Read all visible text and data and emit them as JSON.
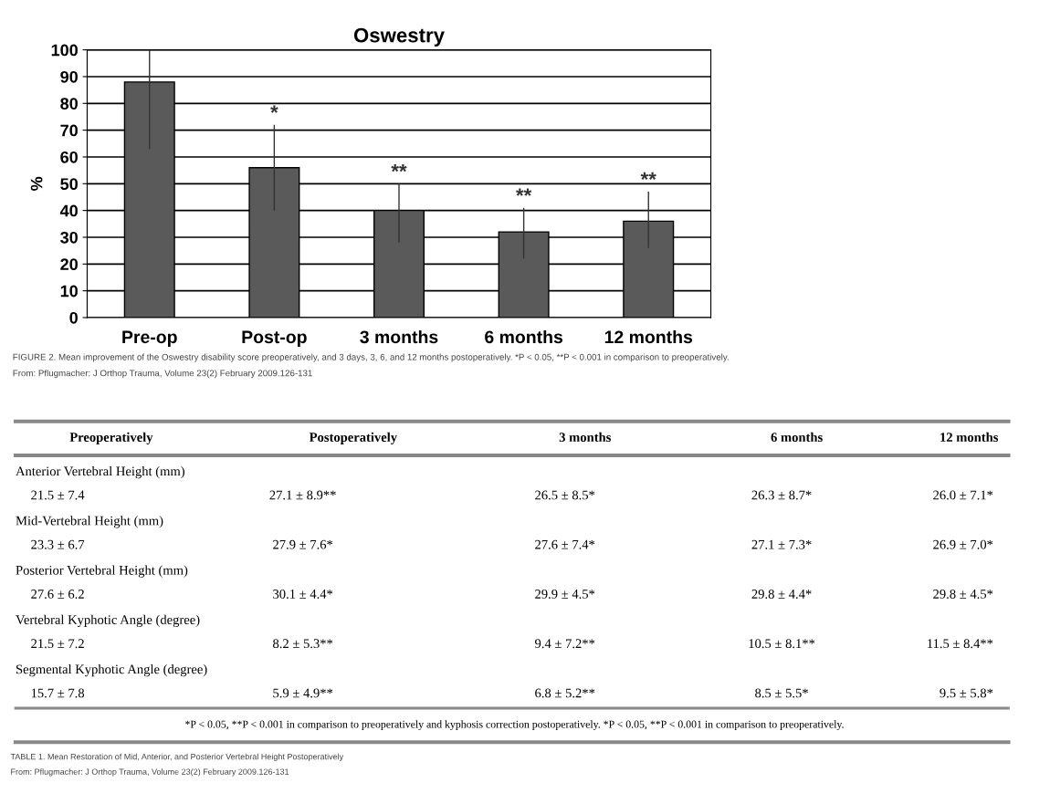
{
  "chart_data": [
    {
      "type": "bar",
      "title": "Oswestry",
      "ylabel": "%",
      "categories": [
        "Pre-op",
        "Post-op",
        "3 months",
        "6 months",
        "12 months"
      ],
      "values": [
        88,
        56,
        40,
        32,
        36
      ],
      "errors": [
        [
          63,
          100
        ],
        [
          40,
          72
        ],
        [
          28,
          50
        ],
        [
          22,
          41
        ],
        [
          26,
          47
        ]
      ],
      "color": "#5a5a5a",
      "ylim": [
        0,
        100
      ],
      "yticks": [
        0,
        10,
        20,
        30,
        40,
        50,
        60,
        70,
        80,
        90,
        100
      ],
      "grid": "y",
      "annotations": [
        {
          "text": "*",
          "x": "Post-op",
          "y": 72
        },
        {
          "text": "**",
          "x": "3 months",
          "y": 50
        },
        {
          "text": "**",
          "x": "6 months",
          "y": 41
        },
        {
          "text": "**",
          "x": "12 months",
          "y": 47
        },
        "FIGURE 2. Mean improvement of the Oswestry disability score preoperatively, and 3 days, 3, 6, and 12 months postoperatively. *P < 0.05, **P < 0.001 in comparison to preoperatively.",
        "From: Pflugmacher: J Orthop Trauma, Volume 23(2) February 2009.126-131"
      ]
    },
    {
      "type": "other",
      "annotations": [
        "Preoperatively",
        "Postoperatively",
        "3 months",
        "6 months",
        "12 months",
        "Anterior Vertebral Height (mm)",
        "21.5 ± 7.4",
        "27.1 ± 8.9**",
        "26.5 ± 8.5*",
        "26.3 ± 8.7*",
        "26.0 ± 7.1*",
        "Mid-Vertebral Height (mm)",
        "23.3 ± 6.7",
        "27.9 ± 7.6*",
        "27.6 ± 7.4*",
        "27.1 ± 7.3*",
        "26.9 ± 7.0*",
        "Posterior Vertebral Height (mm)",
        "27.6 ± 6.2",
        "30.1 ± 4.4*",
        "29.9 ± 4.5*",
        "29.8 ± 4.4*",
        "29.8 ± 4.5*",
        "Vertebral Kyphotic Angle (degree)",
        "21.5 ± 7.2",
        "8.2 ± 5.3**",
        "9.4 ± 7.2**",
        "10.5 ± 8.1**",
        "11.5 ± 8.4**",
        "Segmental Kyphotic Angle (degree)",
        "15.7 ± 7.8",
        "5.9 ± 4.9**",
        "6.8 ± 5.2**",
        "8.5 ± 5.5*",
        "9.5 ± 5.8*",
        "*P < 0.05, **P < 0.001 in comparison to preoperatively and kyphosis correction postoperatively. *P < 0.05, **P < 0.001 in comparison to preoperatively.",
        "TABLE 1. Mean Restoration of Mid, Anterior, and Posterior Vertebral Height Postoperatively",
        "From: Pflugmacher: J Orthop Trauma, Volume 23(2) February 2009.126-131"
      ]
    }
  ]
}
